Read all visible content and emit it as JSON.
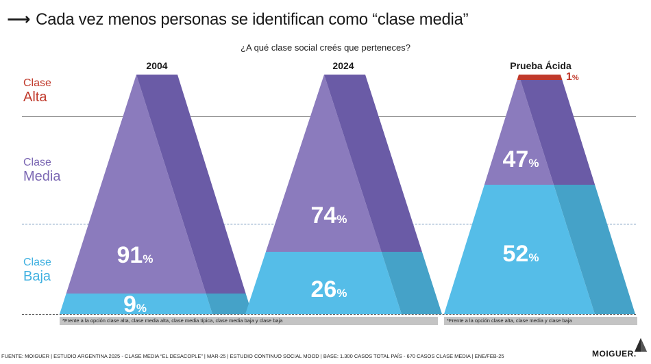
{
  "title": "Cada vez menos personas se identifican como “clase media”",
  "question": "¿A qué clase social creés que perteneces?",
  "class_labels": {
    "alta": [
      "Clase",
      "Alta"
    ],
    "media": [
      "Clase",
      "Media"
    ],
    "baja": [
      "Clase",
      "Baja"
    ]
  },
  "colors": {
    "alta": "#c0392b",
    "media_light": "#8b7bbd",
    "media_dark": "#6a5ba6",
    "baja_light": "#55bde8",
    "baja_dark": "#45a2c8"
  },
  "chart_data": {
    "type": "bar",
    "categories": [
      "2004",
      "2024",
      "Prueba Ácida"
    ],
    "series": [
      {
        "name": "Clase Alta",
        "values": [
          0,
          0,
          1
        ]
      },
      {
        "name": "Clase Media",
        "values": [
          91,
          74,
          47
        ]
      },
      {
        "name": "Clase Baja",
        "values": [
          9,
          26,
          52
        ]
      }
    ],
    "unit": "%",
    "ylim": [
      0,
      100
    ]
  },
  "labels": {
    "p2004_media": "91",
    "p2004_baja": "9",
    "p2024_media": "74",
    "p2024_baja": "26",
    "pa_alta": "1",
    "pa_media": "47",
    "pa_baja": "52",
    "unit": "%"
  },
  "notes": {
    "left": "*Frente a la opción clase alta, clase media alta, clase media típica, clase media baja y clase baja",
    "right": "*Frente a la opción clase alta, clase media y clase baja"
  },
  "footer": "FUENTE: MOIGUER | ESTUDIO ARGENTINA 2025 - CLASE MEDIA “EL DESACOPLE” | MAR-25 | ESTUDIO CONTINUO SOCIAL MOOD | BASE: 1.300 CASOS TOTAL PAÍS - 670 CASOS CLASE MEDIA | ENE/FEB-25",
  "logo": "MOIGUER."
}
